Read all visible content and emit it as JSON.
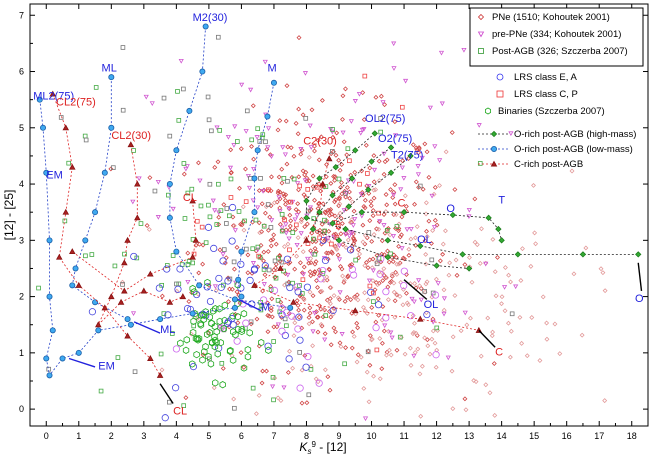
{
  "chart_data": {
    "type": "scatter",
    "title": "",
    "xlabel": "K",
    "xlabel_sub": "s",
    "xlabel_sup": "9",
    "xlabel_tail": " - [12]",
    "ylabel": "[12] - [25]",
    "xlim": [
      -0.5,
      18.5
    ],
    "ylim": [
      -0.3,
      7.2
    ],
    "xticks": [
      "0",
      "1",
      "2",
      "3",
      "4",
      "5",
      "6",
      "7",
      "8",
      "9",
      "10",
      "11",
      "12",
      "13",
      "14",
      "15",
      "16",
      "17",
      "18"
    ],
    "yticks": [
      "0",
      "1",
      "2",
      "3",
      "4",
      "5",
      "6",
      "7"
    ],
    "legend_main": [
      {
        "label": "PNe (1510; Kohoutek 2001)",
        "marker": "diamond",
        "color": "#cc3333"
      },
      {
        "label": "pre-PNe (334; Kohoutek 2001)",
        "marker": "triangle",
        "color": "#cc44cc"
      },
      {
        "label": "Post-AGB (326; Szczerba 2007)",
        "marker": "square",
        "color": "#339933"
      }
    ],
    "legend_lrs": [
      {
        "label": "LRS class E, A",
        "marker": "circle",
        "color": "#3333ee"
      },
      {
        "label": "LRS class C, P",
        "marker": "square",
        "color": "#ee3333"
      },
      {
        "label": "Binaries (Szczerba 2007)",
        "marker": "hexagon",
        "color": "#22aa22"
      }
    ],
    "legend_tracks": [
      {
        "label": "O-rich post-AGB (high-mass)",
        "marker": "diamond",
        "color": "#228822"
      },
      {
        "label": "O-rich post-AGB (low-mass)",
        "marker": "circle",
        "color": "#2b8fd6"
      },
      {
        "label": "C-rich post-AGB",
        "marker": "triangle",
        "color": "#cc2222"
      }
    ],
    "tracks": [
      {
        "name": "ML2(75)",
        "kind": "low",
        "points": [
          [
            -0.2,
            5.5
          ],
          [
            -0.1,
            5.0
          ],
          [
            0.0,
            4.2
          ],
          [
            0.1,
            3.0
          ],
          [
            0.1,
            2.0
          ],
          [
            0.2,
            1.4
          ],
          [
            0.0,
            0.9
          ],
          [
            0.1,
            0.6
          ],
          [
            0.5,
            0.9
          ],
          [
            1.0,
            1.0
          ],
          [
            1.6,
            1.4
          ],
          [
            2.6,
            1.5
          ],
          [
            3.5,
            1.6
          ],
          [
            4.5,
            1.7
          ],
          [
            5.8,
            1.8
          ]
        ]
      },
      {
        "name": "ML",
        "kind": "low",
        "points": [
          [
            2.0,
            5.9
          ],
          [
            2.0,
            5.0
          ],
          [
            1.8,
            4.2
          ],
          [
            1.5,
            3.5
          ],
          [
            1.2,
            3.0
          ],
          [
            0.9,
            2.5
          ],
          [
            0.8,
            2.2
          ],
          [
            1.5,
            1.9
          ],
          [
            2.5,
            1.6
          ]
        ]
      },
      {
        "name": "M2(30)",
        "kind": "low",
        "points": [
          [
            4.9,
            6.8
          ],
          [
            4.8,
            6.0
          ],
          [
            4.4,
            5.3
          ],
          [
            4.0,
            4.6
          ],
          [
            3.8,
            4.0
          ],
          [
            3.8,
            3.4
          ],
          [
            4.0,
            2.8
          ],
          [
            4.7,
            2.2
          ],
          [
            5.8,
            1.95
          ],
          [
            7.5,
            1.8
          ]
        ]
      },
      {
        "name": "M",
        "kind": "low",
        "points": [
          [
            7.0,
            5.8
          ],
          [
            6.8,
            5.2
          ],
          [
            6.5,
            4.6
          ],
          [
            6.4,
            4.1
          ],
          [
            6.4,
            3.5
          ],
          [
            6.0,
            2.8
          ],
          [
            5.9,
            2.3
          ],
          [
            6.0,
            2.0
          ]
        ]
      },
      {
        "name": "CL2(75)",
        "kind": "c",
        "points": [
          [
            0.2,
            5.6
          ],
          [
            0.6,
            5.0
          ],
          [
            0.8,
            4.3
          ],
          [
            0.6,
            3.5
          ],
          [
            0.4,
            2.7
          ],
          [
            1.0,
            2.2
          ],
          [
            1.8,
            1.8
          ],
          [
            2.5,
            1.3
          ],
          [
            3.2,
            0.9
          ],
          [
            3.5,
            0.6
          ]
        ]
      },
      {
        "name": "CL2(30)",
        "kind": "c",
        "points": [
          [
            2.6,
            4.7
          ],
          [
            2.8,
            4.0
          ],
          [
            2.8,
            3.4
          ],
          [
            2.5,
            3.0
          ],
          [
            2.4,
            2.6
          ],
          [
            2.0,
            2.0
          ],
          [
            1.6,
            1.5
          ],
          [
            2.3,
            1.9
          ],
          [
            3.0,
            2.1
          ],
          [
            3.8,
            1.9
          ],
          [
            4.2,
            2.0
          ]
        ]
      },
      {
        "name": "CL",
        "kind": "c",
        "points": [
          [
            4.5,
            3.7
          ],
          [
            4.6,
            3.0
          ],
          [
            4.5,
            2.7
          ],
          [
            3.2,
            2.4
          ],
          [
            2.4,
            2.1
          ],
          [
            0.8,
            2.8
          ]
        ]
      },
      {
        "name": "C2(30)",
        "kind": "c",
        "points": [
          [
            8.7,
            4.45
          ],
          [
            8.5,
            4.0
          ],
          [
            8.4,
            3.5
          ],
          [
            8.0,
            3.0
          ],
          [
            7.2,
            2.5
          ],
          [
            6.4,
            2.2
          ],
          [
            7.6,
            1.9
          ],
          [
            9.5,
            1.75
          ],
          [
            11.5,
            1.6
          ],
          [
            13.3,
            1.4
          ]
        ]
      },
      {
        "name": "OL2(75)",
        "kind": "high",
        "points": [
          [
            10.1,
            4.9
          ],
          [
            9.5,
            4.6
          ],
          [
            8.9,
            4.3
          ],
          [
            8.4,
            4.1
          ],
          [
            8.0,
            3.7
          ],
          [
            8.0,
            3.4
          ],
          [
            9.2,
            3.2
          ],
          [
            10.5,
            3.0
          ],
          [
            11.5,
            2.9
          ],
          [
            12.8,
            2.75
          ],
          [
            14.5,
            2.75
          ],
          [
            16.5,
            2.75
          ],
          [
            18.2,
            2.75
          ]
        ]
      },
      {
        "name": "O2(75)",
        "kind": "high",
        "points": [
          [
            10.6,
            4.65
          ],
          [
            10.0,
            4.4
          ],
          [
            9.4,
            4.1
          ],
          [
            8.8,
            3.8
          ],
          [
            8.4,
            3.5
          ],
          [
            8.2,
            3.2
          ],
          [
            9.0,
            3.0
          ],
          [
            10.5,
            2.7
          ],
          [
            12.0,
            2.55
          ],
          [
            13.0,
            2.5
          ]
        ]
      },
      {
        "name": "T2(75)",
        "kind": "high",
        "points": [
          [
            11.2,
            4.5
          ],
          [
            10.6,
            4.2
          ],
          [
            9.9,
            3.9
          ],
          [
            9.3,
            3.6
          ],
          [
            8.8,
            3.3
          ],
          [
            9.7,
            3.5
          ],
          [
            11.0,
            3.5
          ],
          [
            12.5,
            3.45
          ],
          [
            13.6,
            3.4
          ],
          [
            13.9,
            3.2
          ],
          [
            14.0,
            3.0
          ]
        ]
      }
    ],
    "annotations": [
      {
        "text": "M2(30)",
        "x": 4.5,
        "y": 6.9,
        "color": "#2222dd"
      },
      {
        "text": "ML",
        "x": 1.7,
        "y": 6.0,
        "color": "#2222dd"
      },
      {
        "text": "M",
        "x": 6.8,
        "y": 6.0,
        "color": "#2222dd"
      },
      {
        "text": "ML2(75)",
        "x": -0.4,
        "y": 5.5,
        "color": "#2222dd"
      },
      {
        "text": "CL2(75)",
        "x": 0.3,
        "y": 5.4,
        "color": "#dd2222"
      },
      {
        "text": "CL2(30)",
        "x": 2.0,
        "y": 4.8,
        "color": "#dd2222"
      },
      {
        "text": "EM",
        "x": 0.0,
        "y": 4.1,
        "color": "#2222dd"
      },
      {
        "text": "CL",
        "x": 4.2,
        "y": 3.7,
        "color": "#dd2222"
      },
      {
        "text": "C2(30)",
        "x": 7.9,
        "y": 4.7,
        "color": "#dd2222"
      },
      {
        "text": "OL2(75)",
        "x": 9.8,
        "y": 5.1,
        "color": "#2222dd"
      },
      {
        "text": "O2(75)",
        "x": 10.2,
        "y": 4.75,
        "color": "#2222dd"
      },
      {
        "text": "T2(75)",
        "x": 10.6,
        "y": 4.45,
        "color": "#2222dd"
      },
      {
        "text": "C",
        "x": 10.8,
        "y": 3.6,
        "color": "#dd2222"
      },
      {
        "text": "O",
        "x": 12.3,
        "y": 3.5,
        "color": "#2222dd"
      },
      {
        "text": "T",
        "x": 13.9,
        "y": 3.65,
        "color": "#2222dd"
      },
      {
        "text": "OL",
        "x": 11.4,
        "y": 2.95,
        "color": "#2222dd"
      },
      {
        "text": "M",
        "x": 6.6,
        "y": 1.75,
        "color": "#2222dd"
      },
      {
        "text": "ML",
        "x": 3.5,
        "y": 1.35,
        "color": "#2222dd"
      },
      {
        "text": "EM",
        "x": 1.6,
        "y": 0.7,
        "color": "#2222dd"
      },
      {
        "text": "OL",
        "x": 11.6,
        "y": 1.8,
        "color": "#2222dd"
      },
      {
        "text": "C",
        "x": 13.8,
        "y": 0.95,
        "color": "#dd2222"
      },
      {
        "text": "O",
        "x": 18.1,
        "y": 1.9,
        "color": "#2222dd"
      },
      {
        "text": "CL",
        "x": 3.9,
        "y": -0.1,
        "color": "#dd2222"
      }
    ]
  }
}
